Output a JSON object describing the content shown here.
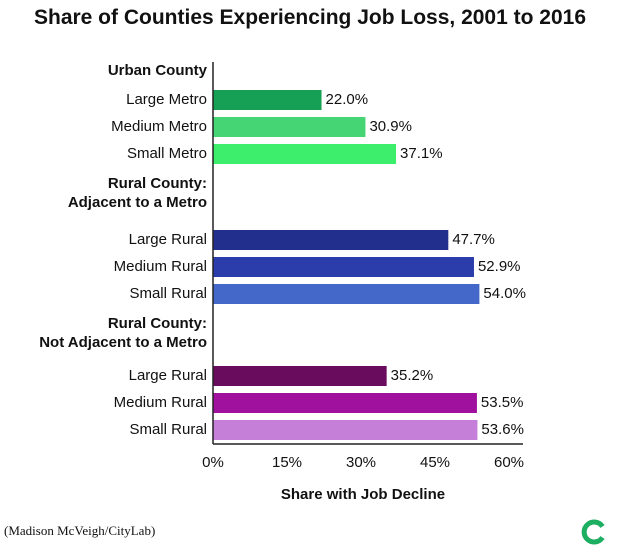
{
  "title": "Share of Counties Experiencing Job Loss, 2001 to 2016",
  "credit": "(Madison McVeigh/CityLab)",
  "chart_data": {
    "type": "bar",
    "orientation": "horizontal",
    "title": "Share of Counties Experiencing Job Loss, 2001 to 2016",
    "xlabel": "Share with Job Decline",
    "ylabel": "",
    "xlim": [
      0,
      60
    ],
    "x_ticks": [
      "0%",
      "15%",
      "30%",
      "45%",
      "60%"
    ],
    "grid": false,
    "groups": [
      {
        "name": [
          "Urban County"
        ],
        "bars": [
          {
            "label": "Large Metro",
            "value": 22.0,
            "value_label": "22.0%",
            "color": "#16a055"
          },
          {
            "label": "Medium Metro",
            "value": 30.9,
            "value_label": "30.9%",
            "color": "#45d574"
          },
          {
            "label": "Small Metro",
            "value": 37.1,
            "value_label": "37.1%",
            "color": "#3ded6c"
          }
        ]
      },
      {
        "name": [
          "Rural County:",
          "Adjacent to a Metro"
        ],
        "bars": [
          {
            "label": "Large Rural",
            "value": 47.7,
            "value_label": "47.7%",
            "color": "#222f8c"
          },
          {
            "label": "Medium Rural",
            "value": 52.9,
            "value_label": "52.9%",
            "color": "#2a3daa"
          },
          {
            "label": "Small Rural",
            "value": 54.0,
            "value_label": "54.0%",
            "color": "#4368c9"
          }
        ]
      },
      {
        "name": [
          "Rural County:",
          "Not Adjacent to a Metro"
        ],
        "bars": [
          {
            "label": "Large Rural",
            "value": 35.2,
            "value_label": "35.2%",
            "color": "#6a0c5e"
          },
          {
            "label": "Medium Rural",
            "value": 53.5,
            "value_label": "53.5%",
            "color": "#a0119e"
          },
          {
            "label": "Small Rural",
            "value": 53.6,
            "value_label": "53.6%",
            "color": "#c57fd9"
          }
        ]
      }
    ]
  },
  "colors": {
    "text": "#111111",
    "axis": "#222222",
    "logo": "#1cae61"
  },
  "icons": {
    "logo": "citylab-c-logo-icon"
  }
}
